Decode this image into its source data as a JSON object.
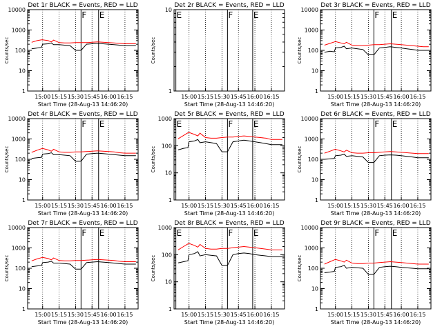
{
  "figure": {
    "xlabel": "Start Time (28-Aug-13 14:46:20)",
    "ylabel": "Counts/sec",
    "x_ticks": [
      "15:00",
      "15:15",
      "15:30",
      "15:45",
      "16:00",
      "16:15"
    ],
    "y_ticks": [
      "1",
      "10",
      "100",
      "1000",
      "10000"
    ],
    "colors": {
      "events": "#000000",
      "lld": "#ff0000",
      "axes": "#000000",
      "background": "#ffffff"
    }
  },
  "chart_data": [
    {
      "type": "line",
      "title": "Det 1r BLACK = Events, RED = LLD",
      "xlabel": "Start Time (28-Aug-13 14:46:20)",
      "ylabel": "Counts/sec",
      "y_scale": "log",
      "ylim": [
        1,
        10000
      ],
      "x": [
        "14:50",
        "14:55",
        "14:59",
        "15:00",
        "15:05",
        "15:08",
        "15:10",
        "15:15",
        "15:20",
        "15:25",
        "15:30",
        "15:35",
        "15:40",
        "15:45",
        "15:50",
        "15:55",
        "16:00",
        "16:05",
        "16:10",
        "16:15",
        "16:20",
        "16:25"
      ],
      "series": [
        {
          "name": "Events",
          "color": "#000000",
          "values": [
            120,
            130,
            140,
            200,
            210,
            230,
            190,
            190,
            180,
            170,
            100,
            100,
            200,
            210,
            220,
            210,
            200,
            190,
            180,
            170,
            170,
            170
          ]
        },
        {
          "name": "LLD",
          "color": "#ff0000",
          "values": [
            250,
            300,
            330,
            330,
            300,
            260,
            320,
            240,
            230,
            230,
            240,
            240,
            240,
            250,
            260,
            250,
            240,
            230,
            220,
            210,
            210,
            210
          ]
        }
      ],
      "markers": [
        {
          "label": "F",
          "time": "15:35"
        },
        {
          "label": "E",
          "time": "15:51"
        }
      ]
    },
    {
      "type": "line",
      "title": "Det 2r BLACK = Events, RED = LLD",
      "xlabel": "Start Time (28-Aug-13 14:46:20)",
      "ylabel": "Counts/sec",
      "y_scale": "log",
      "ylim": [
        1,
        10
      ],
      "x": [],
      "series": [],
      "markers": [
        {
          "label": "E",
          "time": "14:48"
        },
        {
          "label": "F",
          "time": "15:35"
        },
        {
          "label": "E",
          "time": "15:58"
        }
      ]
    },
    {
      "type": "line",
      "title": "Det 3r BLACK = Events, RED = LLD",
      "xlabel": "Start Time (28-Aug-13 14:46:20)",
      "ylabel": "Counts/sec",
      "y_scale": "log",
      "ylim": [
        1,
        10000
      ],
      "x": [
        "14:50",
        "14:55",
        "14:59",
        "15:00",
        "15:05",
        "15:08",
        "15:10",
        "15:15",
        "15:20",
        "15:25",
        "15:30",
        "15:35",
        "15:40",
        "15:45",
        "15:50",
        "15:55",
        "16:00",
        "16:05",
        "16:10",
        "16:15",
        "16:20",
        "16:25"
      ],
      "series": [
        {
          "name": "Events",
          "color": "#000000",
          "values": [
            80,
            90,
            85,
            130,
            140,
            160,
            120,
            130,
            120,
            110,
            60,
            60,
            130,
            140,
            150,
            140,
            130,
            120,
            110,
            100,
            100,
            100
          ]
        },
        {
          "name": "LLD",
          "color": "#ff0000",
          "values": [
            180,
            220,
            260,
            270,
            230,
            210,
            250,
            180,
            170,
            170,
            180,
            190,
            190,
            200,
            210,
            200,
            190,
            180,
            170,
            160,
            150,
            150
          ]
        }
      ],
      "markers": [
        {
          "label": "F",
          "time": "15:35"
        },
        {
          "label": "E",
          "time": "15:51"
        }
      ]
    },
    {
      "type": "line",
      "title": "Det 4r BLACK = Events, RED = LLD",
      "xlabel": "Start Time (28-Aug-13 14:46:20)",
      "ylabel": "Counts/sec",
      "y_scale": "log",
      "ylim": [
        1,
        10000
      ],
      "x": [
        "14:50",
        "14:55",
        "14:59",
        "15:00",
        "15:05",
        "15:08",
        "15:10",
        "15:15",
        "15:20",
        "15:25",
        "15:30",
        "15:35",
        "15:40",
        "15:45",
        "15:50",
        "15:55",
        "16:00",
        "16:05",
        "16:10",
        "16:15",
        "16:20",
        "16:25"
      ],
      "series": [
        {
          "name": "Events",
          "color": "#000000",
          "values": [
            110,
            120,
            125,
            180,
            190,
            210,
            170,
            170,
            160,
            150,
            80,
            80,
            180,
            190,
            200,
            190,
            180,
            170,
            160,
            150,
            150,
            150
          ]
        },
        {
          "name": "LLD",
          "color": "#ff0000",
          "values": [
            220,
            280,
            330,
            340,
            290,
            250,
            310,
            230,
            220,
            220,
            230,
            230,
            240,
            250,
            260,
            250,
            240,
            230,
            210,
            200,
            200,
            200
          ]
        }
      ],
      "markers": [
        {
          "label": "F",
          "time": "15:35"
        },
        {
          "label": "E",
          "time": "15:51"
        }
      ]
    },
    {
      "type": "line",
      "title": "Det 5r BLACK = Events, RED = LLD",
      "xlabel": "Start Time (28-Aug-13 14:46:20)",
      "ylabel": "Counts/sec",
      "y_scale": "log",
      "ylim": [
        1,
        1000
      ],
      "x": [
        "14:50",
        "14:55",
        "14:59",
        "15:00",
        "15:05",
        "15:08",
        "15:10",
        "15:15",
        "15:20",
        "15:25",
        "15:30",
        "15:35",
        "15:40",
        "15:45",
        "15:50",
        "15:55",
        "16:00",
        "16:05",
        "16:10",
        "16:15",
        "16:20",
        "16:25"
      ],
      "series": [
        {
          "name": "Events",
          "color": "#000000",
          "values": [
            70,
            80,
            85,
            140,
            150,
            170,
            130,
            140,
            130,
            120,
            60,
            60,
            140,
            150,
            160,
            150,
            140,
            130,
            120,
            110,
            110,
            110
          ]
        },
        {
          "name": "LLD",
          "color": "#ff0000",
          "values": [
            180,
            240,
            300,
            310,
            260,
            230,
            290,
            200,
            190,
            190,
            200,
            210,
            210,
            220,
            230,
            220,
            210,
            200,
            190,
            170,
            170,
            170
          ]
        }
      ],
      "markers": [
        {
          "label": "E",
          "time": "14:48"
        },
        {
          "label": "F",
          "time": "15:35"
        },
        {
          "label": "E",
          "time": "15:58"
        }
      ]
    },
    {
      "type": "line",
      "title": "Det 6r BLACK = Events, RED = LLD",
      "xlabel": "Start Time (28-Aug-13 14:46:20)",
      "ylabel": "Counts/sec",
      "y_scale": "log",
      "ylim": [
        1,
        10000
      ],
      "x": [
        "14:50",
        "14:55",
        "14:59",
        "15:00",
        "15:05",
        "15:08",
        "15:10",
        "15:15",
        "15:20",
        "15:25",
        "15:30",
        "15:35",
        "15:40",
        "15:45",
        "15:50",
        "15:55",
        "16:00",
        "16:05",
        "16:10",
        "16:15",
        "16:20",
        "16:25"
      ],
      "series": [
        {
          "name": "Events",
          "color": "#000000",
          "values": [
            100,
            105,
            110,
            150,
            160,
            180,
            140,
            150,
            140,
            130,
            70,
            70,
            150,
            160,
            165,
            160,
            150,
            140,
            130,
            120,
            120,
            120
          ]
        },
        {
          "name": "LLD",
          "color": "#ff0000",
          "values": [
            200,
            250,
            300,
            310,
            260,
            230,
            280,
            210,
            200,
            200,
            210,
            210,
            220,
            230,
            240,
            230,
            220,
            210,
            200,
            190,
            190,
            190
          ]
        }
      ],
      "markers": [
        {
          "label": "F",
          "time": "15:35"
        },
        {
          "label": "E",
          "time": "15:51"
        }
      ]
    },
    {
      "type": "line",
      "title": "Det 7r BLACK = Events, RED = LLD",
      "xlabel": "Start Time (28-Aug-13 14:46:20)",
      "ylabel": "Counts/sec",
      "y_scale": "log",
      "ylim": [
        1,
        10000
      ],
      "x": [
        "14:50",
        "14:55",
        "14:59",
        "15:00",
        "15:05",
        "15:08",
        "15:10",
        "15:15",
        "15:20",
        "15:25",
        "15:30",
        "15:35",
        "15:40",
        "15:45",
        "15:50",
        "15:55",
        "16:00",
        "16:05",
        "16:10",
        "16:15",
        "16:20",
        "16:25"
      ],
      "series": [
        {
          "name": "Events",
          "color": "#000000",
          "values": [
            120,
            130,
            135,
            190,
            200,
            220,
            180,
            180,
            170,
            160,
            90,
            90,
            190,
            200,
            210,
            200,
            190,
            180,
            170,
            160,
            160,
            160
          ]
        },
        {
          "name": "LLD",
          "color": "#ff0000",
          "values": [
            230,
            290,
            330,
            340,
            300,
            260,
            320,
            240,
            230,
            230,
            240,
            240,
            250,
            260,
            270,
            260,
            250,
            240,
            220,
            210,
            210,
            210
          ]
        }
      ],
      "markers": [
        {
          "label": "F",
          "time": "15:35"
        },
        {
          "label": "E",
          "time": "15:51"
        }
      ]
    },
    {
      "type": "line",
      "title": "Det 8r BLACK = Events, RED = LLD",
      "xlabel": "Start Time (28-Aug-13 14:46:20)",
      "ylabel": "Counts/sec",
      "y_scale": "log",
      "ylim": [
        1,
        1000
      ],
      "x": [
        "14:50",
        "14:55",
        "14:59",
        "15:00",
        "15:05",
        "15:08",
        "15:10",
        "15:15",
        "15:20",
        "15:25",
        "15:30",
        "15:35",
        "15:40",
        "15:45",
        "15:50",
        "15:55",
        "16:00",
        "16:05",
        "16:10",
        "16:15",
        "16:20",
        "16:25"
      ],
      "series": [
        {
          "name": "Events",
          "color": "#000000",
          "values": [
            50,
            55,
            60,
            100,
            110,
            130,
            90,
            100,
            95,
            90,
            40,
            40,
            100,
            110,
            115,
            110,
            100,
            95,
            90,
            85,
            85,
            85
          ]
        },
        {
          "name": "LLD",
          "color": "#ff0000",
          "values": [
            150,
            200,
            250,
            260,
            220,
            190,
            240,
            170,
            160,
            160,
            170,
            170,
            180,
            190,
            200,
            190,
            180,
            170,
            160,
            150,
            150,
            150
          ]
        }
      ],
      "markers": [
        {
          "label": "E",
          "time": "14:48"
        },
        {
          "label": "F",
          "time": "15:35"
        },
        {
          "label": "E",
          "time": "15:58"
        }
      ]
    },
    {
      "type": "line",
      "title": "Det 9r BLACK = Events, RED = LLD",
      "xlabel": "Start Time (28-Aug-13 14:46:20)",
      "ylabel": "Counts/sec",
      "y_scale": "log",
      "ylim": [
        1,
        10000
      ],
      "x": [
        "14:50",
        "14:55",
        "14:59",
        "15:00",
        "15:05",
        "15:08",
        "15:10",
        "15:15",
        "15:20",
        "15:25",
        "15:30",
        "15:35",
        "15:40",
        "15:45",
        "15:50",
        "15:55",
        "16:00",
        "16:05",
        "16:10",
        "16:15",
        "16:20",
        "16:25"
      ],
      "series": [
        {
          "name": "Events",
          "color": "#000000",
          "values": [
            60,
            65,
            70,
            110,
            120,
            140,
            100,
            110,
            105,
            100,
            50,
            50,
            110,
            120,
            125,
            120,
            110,
            105,
            100,
            95,
            95,
            95
          ]
        },
        {
          "name": "LLD",
          "color": "#ff0000",
          "values": [
            160,
            210,
            260,
            270,
            230,
            200,
            250,
            180,
            170,
            170,
            180,
            180,
            190,
            200,
            210,
            200,
            190,
            180,
            170,
            160,
            160,
            160
          ]
        }
      ],
      "markers": [
        {
          "label": "F",
          "time": "15:35"
        },
        {
          "label": "E",
          "time": "15:51"
        }
      ]
    }
  ]
}
